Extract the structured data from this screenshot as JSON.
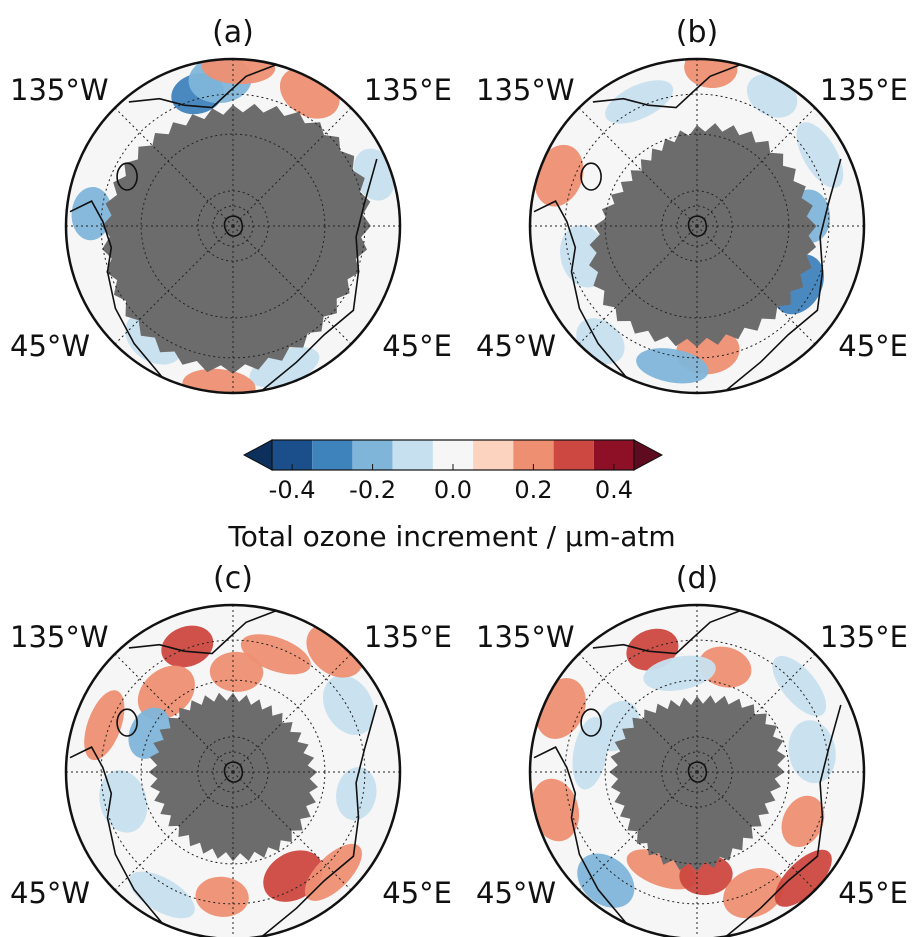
{
  "chart_data": {
    "type": "heatmap",
    "projection": "south polar stereographic",
    "grid": true,
    "colorbar": {
      "title": "Total ozone increment / µm-atm",
      "range": [
        -0.45,
        0.45
      ],
      "extend": "both",
      "tick_values": [
        -0.4,
        -0.2,
        0.0,
        0.2,
        0.4
      ],
      "tick_labels": [
        "-0.4",
        "-0.2",
        "0.0",
        "0.2",
        "0.4"
      ],
      "levels": [
        -0.45,
        -0.35,
        -0.25,
        -0.15,
        -0.05,
        0.05,
        0.15,
        0.25,
        0.35,
        0.45
      ],
      "colors": [
        "#1a4f8b",
        "#3f83bd",
        "#7fb5d9",
        "#c7e0ef",
        "#f6f6f6",
        "#fbd3bf",
        "#ee8f72",
        "#cc4840",
        "#8e1027"
      ],
      "extend_colors": {
        "low": "#0c2f5c",
        "high": "#5e0a1f"
      }
    },
    "masked_color": "#6c6c6c",
    "panels": [
      {
        "label": "(a)",
        "lon_labels": [
          "135°W",
          "135°E",
          "45°W",
          "45°E"
        ],
        "mask_mean_radius": 0.78,
        "mask_shape": [
          0.02,
          0.06,
          -0.03,
          0.02
        ],
        "anomalies": [
          {
            "lon": -165,
            "colat": 0.82,
            "value": -0.35
          },
          {
            "lon": -175,
            "colat": 0.88,
            "value": -0.2
          },
          {
            "lon": 178,
            "colat": 0.95,
            "value": 0.15
          },
          {
            "lon": -95,
            "colat": 0.85,
            "value": -0.2
          },
          {
            "lon": -35,
            "colat": 0.82,
            "value": -0.15
          },
          {
            "lon": 20,
            "colat": 0.9,
            "value": -0.15
          },
          {
            "lon": 110,
            "colat": 0.9,
            "value": -0.15
          },
          {
            "lon": 150,
            "colat": 0.92,
            "value": 0.15
          },
          {
            "lon": -5,
            "colat": 0.96,
            "value": 0.15
          }
        ]
      },
      {
        "label": "(b)",
        "lon_labels": [
          "135°W",
          "135°E",
          "45°W",
          "45°E"
        ],
        "mask_mean_radius": 0.64,
        "mask_shape": [
          0.05,
          0.08,
          -0.04,
          -0.02
        ],
        "anomalies": [
          {
            "lon": 95,
            "colat": 0.68,
            "value": -0.25
          },
          {
            "lon": 60,
            "colat": 0.7,
            "value": -0.35
          },
          {
            "lon": 120,
            "colat": 0.85,
            "value": -0.15
          },
          {
            "lon": 150,
            "colat": 0.9,
            "value": -0.15
          },
          {
            "lon": 5,
            "colat": 0.75,
            "value": 0.15
          },
          {
            "lon": -10,
            "colat": 0.85,
            "value": -0.2
          },
          {
            "lon": -40,
            "colat": 0.9,
            "value": -0.15
          },
          {
            "lon": -110,
            "colat": 0.88,
            "value": 0.15
          },
          {
            "lon": -155,
            "colat": 0.82,
            "value": -0.15
          },
          {
            "lon": 175,
            "colat": 0.95,
            "value": 0.15
          },
          {
            "lon": -75,
            "colat": 0.7,
            "value": -0.15
          }
        ]
      },
      {
        "label": "(c)",
        "lon_labels": [
          "135°W",
          "135°E",
          "45°W",
          "45°E"
        ],
        "mask_mean_radius": 0.48,
        "mask_shape": [
          0.0,
          0.03,
          0.02,
          0.0
        ],
        "anomalies": [
          {
            "lon": -160,
            "colat": 0.8,
            "value": 0.25
          },
          {
            "lon": -140,
            "colat": 0.62,
            "value": 0.15
          },
          {
            "lon": -110,
            "colat": 0.82,
            "value": 0.15
          },
          {
            "lon": -115,
            "colat": 0.55,
            "value": -0.2
          },
          {
            "lon": -75,
            "colat": 0.68,
            "value": -0.15
          },
          {
            "lon": -30,
            "colat": 0.85,
            "value": -0.15
          },
          {
            "lon": -5,
            "colat": 0.75,
            "value": 0.15
          },
          {
            "lon": 30,
            "colat": 0.72,
            "value": 0.25
          },
          {
            "lon": 45,
            "colat": 0.85,
            "value": 0.2
          },
          {
            "lon": 80,
            "colat": 0.75,
            "value": -0.15
          },
          {
            "lon": 120,
            "colat": 0.8,
            "value": -0.15
          },
          {
            "lon": 160,
            "colat": 0.75,
            "value": 0.15
          },
          {
            "lon": 178,
            "colat": 0.6,
            "value": 0.15
          },
          {
            "lon": 140,
            "colat": 0.95,
            "value": 0.15
          }
        ]
      },
      {
        "label": "(d)",
        "lon_labels": [
          "135°W",
          "135°E",
          "45°W",
          "45°E"
        ],
        "mask_mean_radius": 0.5,
        "mask_shape": [
          0.0,
          0.04,
          -0.02,
          0.03
        ],
        "anomalies": [
          {
            "lon": -160,
            "colat": 0.78,
            "value": 0.25
          },
          {
            "lon": -115,
            "colat": 0.9,
            "value": 0.2
          },
          {
            "lon": -100,
            "colat": 0.65,
            "value": -0.15
          },
          {
            "lon": -120,
            "colat": 0.55,
            "value": -0.15
          },
          {
            "lon": -40,
            "colat": 0.85,
            "value": -0.25
          },
          {
            "lon": -20,
            "colat": 0.62,
            "value": 0.2
          },
          {
            "lon": 5,
            "colat": 0.62,
            "value": 0.25
          },
          {
            "lon": 25,
            "colat": 0.8,
            "value": 0.15
          },
          {
            "lon": 45,
            "colat": 0.9,
            "value": 0.25
          },
          {
            "lon": 65,
            "colat": 0.7,
            "value": 0.2
          },
          {
            "lon": 100,
            "colat": 0.7,
            "value": -0.15
          },
          {
            "lon": 130,
            "colat": 0.8,
            "value": -0.15
          },
          {
            "lon": 165,
            "colat": 0.65,
            "value": 0.15
          },
          {
            "lon": -75,
            "colat": 0.88,
            "value": 0.15
          },
          {
            "lon": -170,
            "colat": 0.6,
            "value": -0.15
          }
        ]
      }
    ]
  }
}
